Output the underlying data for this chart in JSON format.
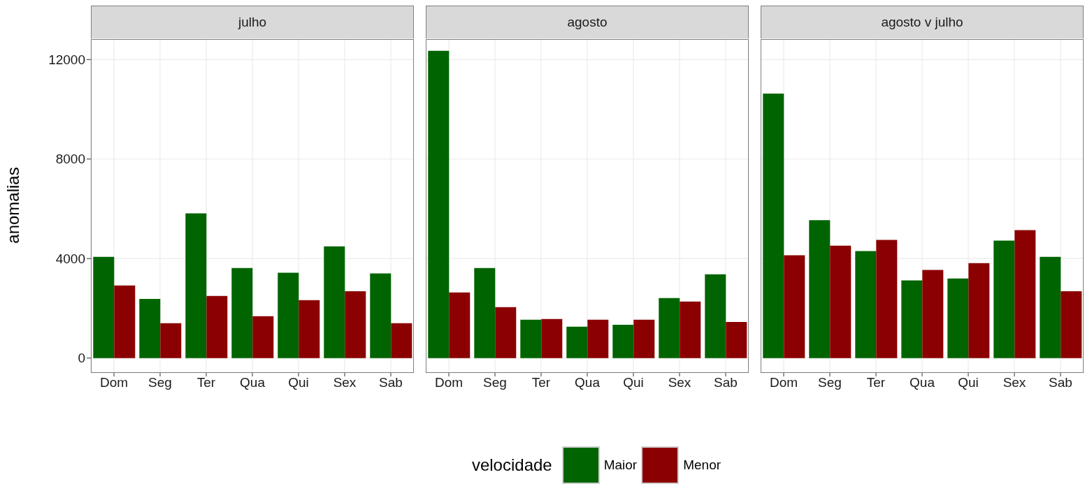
{
  "chart_data": [
    {
      "type": "bar",
      "title": "julho",
      "ylabel": "anomalias",
      "categories": [
        "Dom",
        "Seg",
        "Ter",
        "Qua",
        "Qui",
        "Sex",
        "Sab"
      ],
      "series": [
        {
          "name": "Maior",
          "color": "#006400",
          "values": [
            4070,
            2380,
            5820,
            3620,
            3430,
            4490,
            3400
          ]
        },
        {
          "name": "Menor",
          "color": "#8b0000",
          "values": [
            2920,
            1400,
            2500,
            1680,
            2330,
            2690,
            1400
          ]
        }
      ],
      "ylim": [
        -570,
        12850
      ],
      "yticks": [
        0,
        4000,
        8000,
        12000
      ],
      "grid": true,
      "legend": "bottom",
      "legend_title": "velocidade"
    },
    {
      "type": "bar",
      "title": "agosto",
      "categories": [
        "Dom",
        "Seg",
        "Ter",
        "Qua",
        "Qui",
        "Sex",
        "Sab"
      ],
      "series": [
        {
          "color": "#006400",
          "values": [
            12350,
            3620,
            1540,
            1260,
            1340,
            2410,
            3370
          ]
        },
        {
          "color": "#8b0000",
          "values": [
            2640,
            2050,
            1570,
            1540,
            1540,
            2270,
            1450
          ]
        }
      ],
      "ylim": [
        -570,
        12850
      ],
      "yticks": [
        0,
        4000,
        8000,
        12000
      ],
      "grid": true,
      "tick_labels": "x"
    },
    {
      "type": "bar",
      "title": "agosto v julho",
      "categories": [
        "Dom",
        "Seg",
        "Ter",
        "Qua",
        "Qui",
        "Sex",
        "Sab"
      ],
      "series": [
        {
          "color": "#006400",
          "values": [
            10630,
            5540,
            4300,
            3120,
            3200,
            4720,
            4070
          ]
        },
        {
          "color": "#8b0000",
          "values": [
            4130,
            4520,
            4750,
            3540,
            3820,
            5140,
            2690
          ]
        }
      ],
      "ylim": [
        -570,
        12850
      ],
      "yticks": [
        0,
        4000,
        8000,
        12000
      ],
      "grid": true,
      "tick_labels": "x"
    }
  ]
}
